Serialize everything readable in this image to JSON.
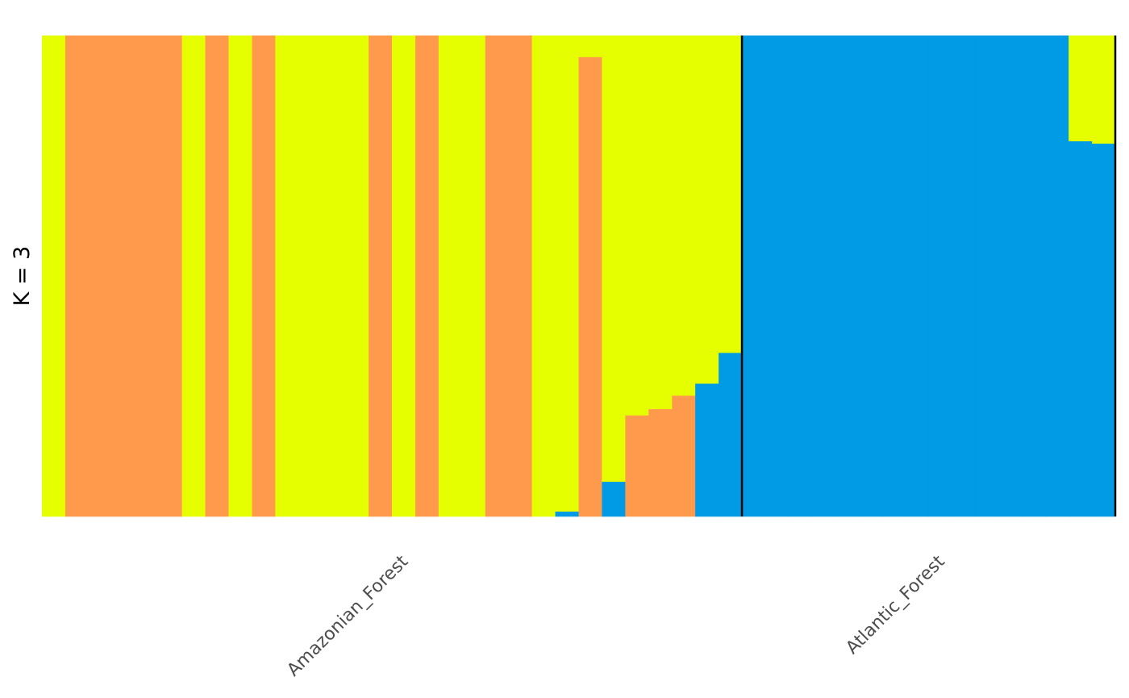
{
  "chart_data": {
    "type": "bar",
    "stacked": true,
    "ylabel": "K  =  3",
    "ylim": [
      0,
      1
    ],
    "grid": false,
    "legend": "none",
    "clusters": [
      {
        "id": "cluster-1",
        "color": "#E5FF00"
      },
      {
        "id": "cluster-2",
        "color": "#FF9A4D"
      },
      {
        "id": "cluster-3",
        "color": "#009AE5"
      }
    ],
    "groups": [
      {
        "name": "Amazonian_Forest",
        "samples": [
          [
            1,
            0,
            0
          ],
          [
            0,
            1,
            0
          ],
          [
            0,
            1,
            0
          ],
          [
            0,
            1,
            0
          ],
          [
            0,
            1,
            0
          ],
          [
            0,
            1,
            0
          ],
          [
            1,
            0,
            0
          ],
          [
            0,
            1,
            0
          ],
          [
            1,
            0,
            0
          ],
          [
            0,
            1,
            0
          ],
          [
            1,
            0,
            0
          ],
          [
            1,
            0,
            0
          ],
          [
            1,
            0,
            0
          ],
          [
            1,
            0,
            0
          ],
          [
            0,
            1,
            0
          ],
          [
            1,
            0,
            0
          ],
          [
            0,
            1,
            0
          ],
          [
            1,
            0,
            0
          ],
          [
            1,
            0,
            0
          ],
          [
            0,
            1,
            0
          ],
          [
            0,
            1,
            0
          ],
          [
            1,
            0,
            0
          ],
          [
            0.99,
            0,
            0.01
          ],
          [
            0.045,
            0.955,
            0
          ],
          [
            0.928,
            0,
            0.072
          ],
          [
            0.79,
            0.21,
            0
          ],
          [
            0.777,
            0.223,
            0
          ],
          [
            0.749,
            0.251,
            0
          ],
          [
            0.724,
            0,
            0.276
          ],
          [
            0.66,
            0,
            0.34
          ]
        ]
      },
      {
        "name": "Atlantic_Forest",
        "samples": [
          [
            0,
            0,
            1
          ],
          [
            0,
            0,
            1
          ],
          [
            0,
            0,
            1
          ],
          [
            0,
            0,
            1
          ],
          [
            0,
            0,
            1
          ],
          [
            0,
            0,
            1
          ],
          [
            0,
            0,
            1
          ],
          [
            0,
            0,
            1
          ],
          [
            0,
            0,
            1
          ],
          [
            0,
            0,
            1
          ],
          [
            0,
            0,
            1
          ],
          [
            0,
            0,
            1
          ],
          [
            0,
            0,
            1
          ],
          [
            0,
            0,
            1
          ],
          [
            0.22,
            0,
            0.78
          ],
          [
            0.225,
            0,
            0.775
          ]
        ]
      }
    ]
  }
}
